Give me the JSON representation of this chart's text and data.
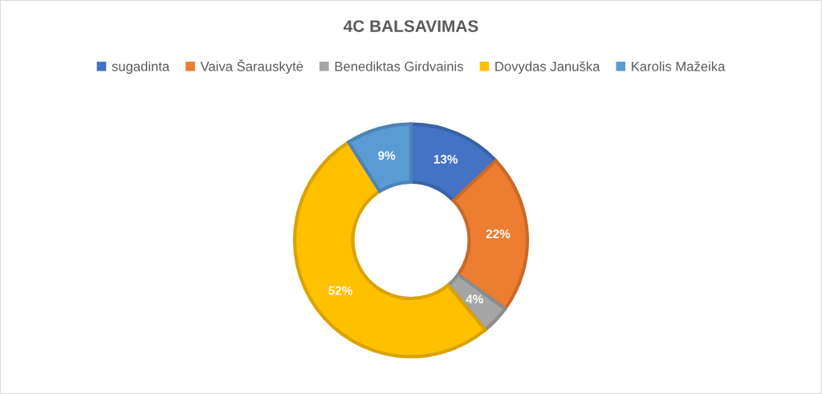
{
  "chart_data": {
    "type": "donut",
    "title": "4C BALSAVIMAS",
    "categories": [
      "sugadinta",
      "Vaiva Šarauskytė",
      "Benediktas Girdvainis",
      "Dovydas Januška",
      "Karolis Mažeika"
    ],
    "values": [
      13,
      22,
      4,
      52,
      9
    ],
    "value_labels": [
      "13%",
      "22%",
      "4%",
      "52%",
      "9%"
    ],
    "colors": [
      "#4472c4",
      "#ed7d31",
      "#a5a5a5",
      "#ffc000",
      "#5b9bd5"
    ],
    "legend": "top"
  }
}
